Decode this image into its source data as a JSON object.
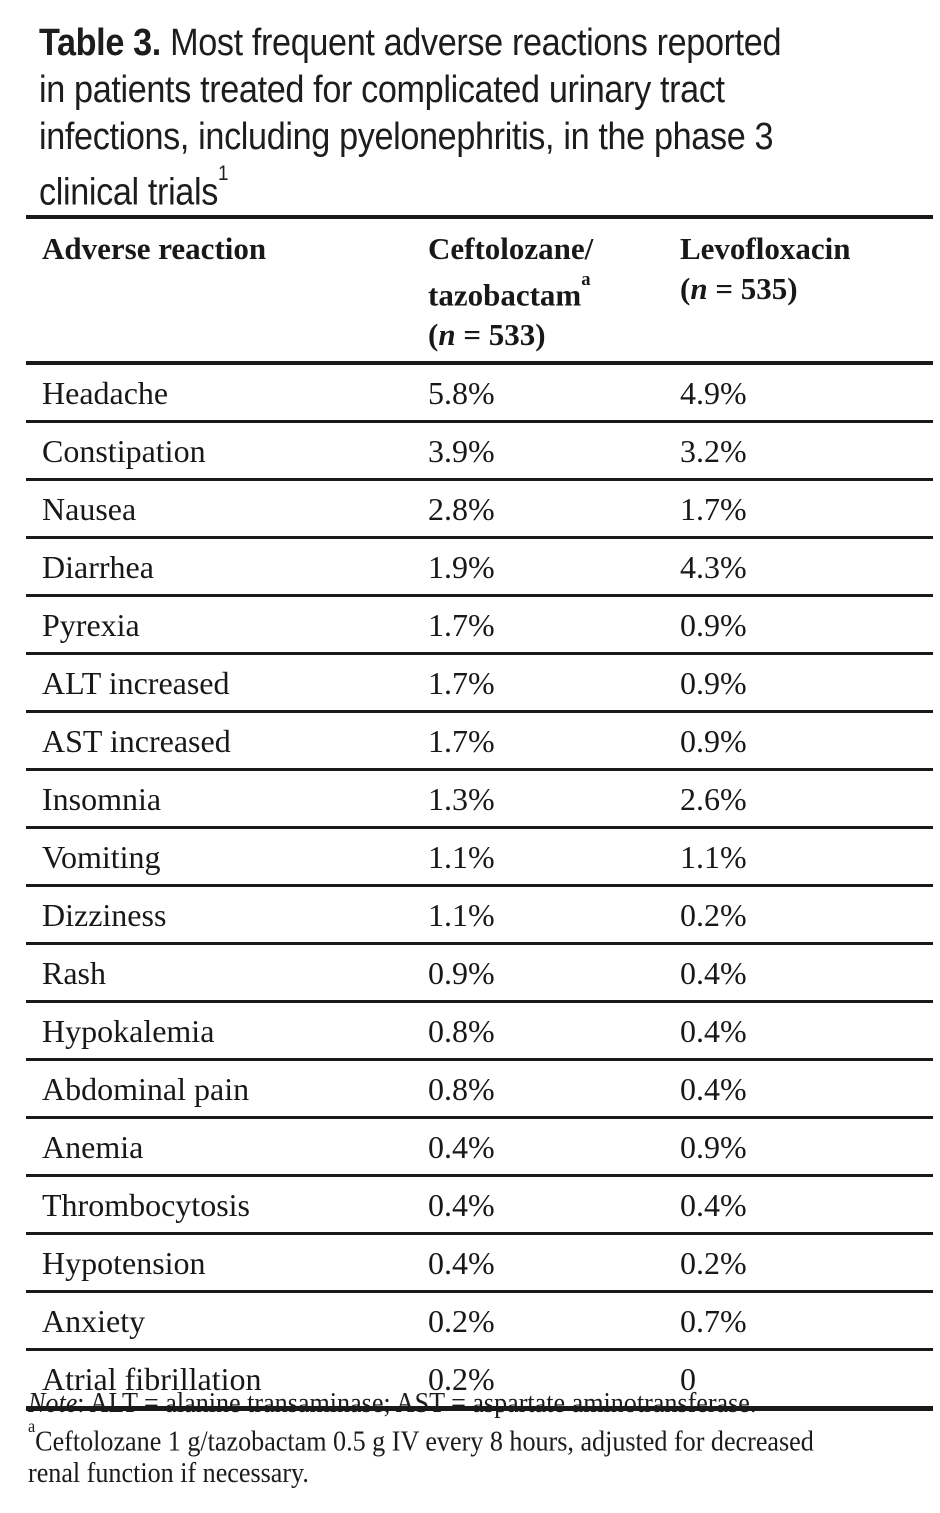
{
  "page": {
    "background_color": "#ffffff",
    "text_color": "#1b1b1b",
    "rule_color": "#1a1a1a"
  },
  "title": {
    "label": "Table 3.",
    "line1_rest": " Most frequent adverse reactions reported",
    "line2": "in patients treated for complicated urinary tract",
    "line3": "infections, including pyelonephritis, in the phase 3",
    "line4": "clinical trials",
    "citation_sup": "1"
  },
  "table": {
    "header": {
      "col1": "Adverse reaction",
      "col2_line1": "Ceftolozane/",
      "col2_line2": "tazobactam",
      "col2_sup": "a",
      "col2_n_pre": "(",
      "col2_n": "n",
      "col2_n_post": " = 533)",
      "col3_line1": "Levofloxacin",
      "col3_n_pre": "(",
      "col3_n": "n",
      "col3_n_post": " = 535)"
    },
    "rows": [
      {
        "reaction": "Headache",
        "ceftolozane_tazobactam": "5.8%",
        "levofloxacin": "4.9%"
      },
      {
        "reaction": "Constipation",
        "ceftolozane_tazobactam": "3.9%",
        "levofloxacin": "3.2%"
      },
      {
        "reaction": "Nausea",
        "ceftolozane_tazobactam": "2.8%",
        "levofloxacin": "1.7%"
      },
      {
        "reaction": "Diarrhea",
        "ceftolozane_tazobactam": "1.9%",
        "levofloxacin": "4.3%"
      },
      {
        "reaction": "Pyrexia",
        "ceftolozane_tazobactam": "1.7%",
        "levofloxacin": "0.9%"
      },
      {
        "reaction": "ALT increased",
        "ceftolozane_tazobactam": "1.7%",
        "levofloxacin": "0.9%"
      },
      {
        "reaction": "AST increased",
        "ceftolozane_tazobactam": "1.7%",
        "levofloxacin": "0.9%"
      },
      {
        "reaction": "Insomnia",
        "ceftolozane_tazobactam": "1.3%",
        "levofloxacin": "2.6%"
      },
      {
        "reaction": "Vomiting",
        "ceftolozane_tazobactam": "1.1%",
        "levofloxacin": "1.1%"
      },
      {
        "reaction": "Dizziness",
        "ceftolozane_tazobactam": "1.1%",
        "levofloxacin": "0.2%"
      },
      {
        "reaction": "Rash",
        "ceftolozane_tazobactam": "0.9%",
        "levofloxacin": "0.4%"
      },
      {
        "reaction": "Hypokalemia",
        "ceftolozane_tazobactam": "0.8%",
        "levofloxacin": "0.4%"
      },
      {
        "reaction": "Abdominal pain",
        "ceftolozane_tazobactam": "0.8%",
        "levofloxacin": "0.4%"
      },
      {
        "reaction": "Anemia",
        "ceftolozane_tazobactam": "0.4%",
        "levofloxacin": "0.9%"
      },
      {
        "reaction": "Thrombocytosis",
        "ceftolozane_tazobactam": "0.4%",
        "levofloxacin": "0.4%"
      },
      {
        "reaction": "Hypotension",
        "ceftolozane_tazobactam": "0.4%",
        "levofloxacin": "0.2%"
      },
      {
        "reaction": "Anxiety",
        "ceftolozane_tazobactam": "0.2%",
        "levofloxacin": "0.7%"
      },
      {
        "reaction": "Atrial fibrillation",
        "ceftolozane_tazobactam": "0.2%",
        "levofloxacin": "0"
      }
    ]
  },
  "footnote": {
    "note_label": "Note",
    "note_rest": ": ALT = alanine transaminase; AST = aspartate aminotransferase.",
    "a_marker": "a",
    "a_line1": "Ceftolozane 1 g/tazobactam 0.5 g IV every 8 hours, adjusted for decreased",
    "a_line2": "renal function if necessary."
  }
}
